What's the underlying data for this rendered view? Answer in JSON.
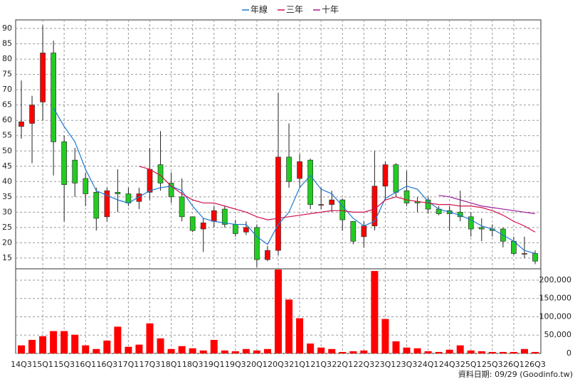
{
  "chart_data": {
    "type": "candlestick",
    "categories": [
      "14Q3",
      null,
      "15Q1",
      null,
      "15Q3",
      null,
      "16Q1",
      null,
      "16Q3",
      null,
      "17Q1",
      null,
      "17Q3",
      null,
      "18Q1",
      null,
      "18Q3",
      null,
      "19Q1",
      null,
      "19Q3",
      null,
      "20Q1",
      null,
      "20Q3",
      null,
      "21Q1",
      null,
      "21Q3",
      null,
      "22Q1",
      null,
      "22Q3",
      null,
      "23Q1",
      null,
      "23Q3",
      null,
      "24Q1",
      null,
      "24Q3",
      null,
      "25Q1",
      null,
      "25Q3",
      null,
      "26Q1",
      null,
      "26Q3"
    ],
    "open": [
      58,
      59,
      66,
      82,
      53,
      47,
      41,
      36.5,
      28.5,
      36.5,
      36,
      33.5,
      36.5,
      45.5,
      39.5,
      35,
      28.5,
      24.5,
      27,
      31,
      26,
      23.5,
      25,
      14.5,
      17.5,
      48,
      41,
      47,
      32.5,
      32.5,
      34,
      27,
      22,
      25.5,
      38.5,
      45.5,
      37,
      33.5,
      34,
      31,
      30.5,
      30,
      28.5,
      25,
      24.5,
      24.5,
      20.5,
      16.5,
      16.5
    ],
    "high": [
      73,
      68,
      91,
      86,
      55,
      51,
      43,
      38,
      38,
      44,
      38,
      38,
      51,
      56.5,
      43,
      41,
      28.5,
      28,
      32,
      32,
      27.5,
      27,
      26,
      19,
      69,
      59,
      49,
      47.5,
      38,
      37,
      34.5,
      27,
      27,
      50,
      46.5,
      46,
      43.5,
      35,
      35,
      32,
      32,
      37,
      30,
      28,
      26,
      25,
      22,
      22,
      17.5
    ],
    "low": [
      54,
      46,
      60,
      42,
      27,
      35,
      32,
      24,
      27,
      30,
      32,
      31,
      34,
      37,
      33,
      27,
      23.5,
      17,
      25,
      25,
      22,
      22.5,
      12,
      14,
      16,
      38,
      38,
      31,
      31,
      30,
      24,
      19.5,
      18.5,
      24,
      34,
      35,
      32,
      30,
      29.5,
      29,
      24,
      27,
      22,
      20.5,
      22,
      18.5,
      16,
      15,
      13
    ],
    "close": [
      59.5,
      65,
      82,
      53,
      39,
      39.5,
      36,
      28,
      37,
      36,
      33,
      36,
      44,
      39.5,
      35,
      28.5,
      24,
      26.5,
      30.5,
      26,
      23,
      25,
      14.5,
      17.5,
      48,
      40,
      46.5,
      32.5,
      32.5,
      34,
      27.5,
      20.5,
      25.5,
      38.5,
      45.5,
      36.5,
      33,
      33,
      31,
      29.5,
      29.5,
      28.5,
      24.5,
      24.5,
      24,
      20.5,
      16.5,
      16.5,
      14
    ],
    "up_color": "#ff0000",
    "down_color": "#22cc22",
    "series": [
      {
        "name": "年線",
        "color": "#1e78d0",
        "values": [
          null,
          null,
          null,
          64,
          58,
          53,
          44,
          37,
          35.5,
          34,
          33,
          35,
          37,
          38,
          38.5,
          37,
          32,
          28,
          27,
          26.5,
          26,
          26,
          22,
          19.5,
          26,
          30,
          38,
          42,
          37.5,
          36,
          32,
          28,
          25.5,
          27,
          34.5,
          36.5,
          38.5,
          37.5,
          33.5,
          31,
          30,
          29,
          27.5,
          25.5,
          24.5,
          22.5,
          20.5,
          17.5,
          16.5
        ]
      },
      {
        "name": "三年",
        "color": "#d0104a",
        "values": [
          null,
          null,
          null,
          null,
          null,
          null,
          null,
          null,
          null,
          null,
          null,
          45,
          44,
          42,
          38.5,
          36,
          34,
          33,
          33,
          32,
          31,
          30,
          28.5,
          27.5,
          28,
          28.5,
          29,
          29.5,
          30,
          30.5,
          30.5,
          30,
          30,
          31,
          34,
          35,
          34,
          33.5,
          33,
          32.5,
          32.5,
          32,
          32,
          31.5,
          30.5,
          29,
          27,
          25.5,
          23.5
        ]
      },
      {
        "name": "十年",
        "color": "#a0209c",
        "values": [
          null,
          null,
          null,
          null,
          null,
          null,
          null,
          null,
          null,
          null,
          null,
          null,
          null,
          null,
          null,
          null,
          null,
          null,
          null,
          null,
          null,
          null,
          null,
          null,
          null,
          null,
          null,
          null,
          null,
          null,
          null,
          null,
          null,
          null,
          null,
          null,
          null,
          null,
          null,
          35.5,
          35,
          34,
          33,
          32,
          31.5,
          31,
          30.5,
          30,
          29.5
        ]
      }
    ],
    "legend": "top",
    "ylim": [
      11.5,
      92.8
    ],
    "yticks": [
      15,
      20,
      25,
      30,
      35,
      40,
      45,
      50,
      55,
      60,
      65,
      70,
      75,
      80,
      85,
      90
    ],
    "grid": true,
    "volume": {
      "color": "#ff0000",
      "values": [
        22000,
        37000,
        47000,
        61000,
        61000,
        51000,
        22000,
        12000,
        35000,
        73000,
        18000,
        24000,
        82000,
        41000,
        12000,
        20000,
        14000,
        8000,
        37000,
        8000,
        6000,
        12000,
        8000,
        12000,
        229000,
        147000,
        96000,
        27000,
        16000,
        12000,
        4000,
        6000,
        8000,
        225000,
        94000,
        33000,
        16000,
        14000,
        6000,
        4000,
        10000,
        22000,
        8000,
        6000,
        4000,
        4000,
        4000,
        12000,
        4000
      ],
      "ylim": [
        0,
        231000
      ],
      "yticks": [
        0,
        {
          "value": 50000,
          "label": "50,000"
        },
        {
          "value": 100000,
          "label": "100,000"
        },
        {
          "value": 150000,
          "label": "150,000"
        },
        {
          "value": 200000,
          "label": "200,000"
        }
      ]
    },
    "note": "資料日期: 09/29  (Goodinfo.tw)"
  }
}
